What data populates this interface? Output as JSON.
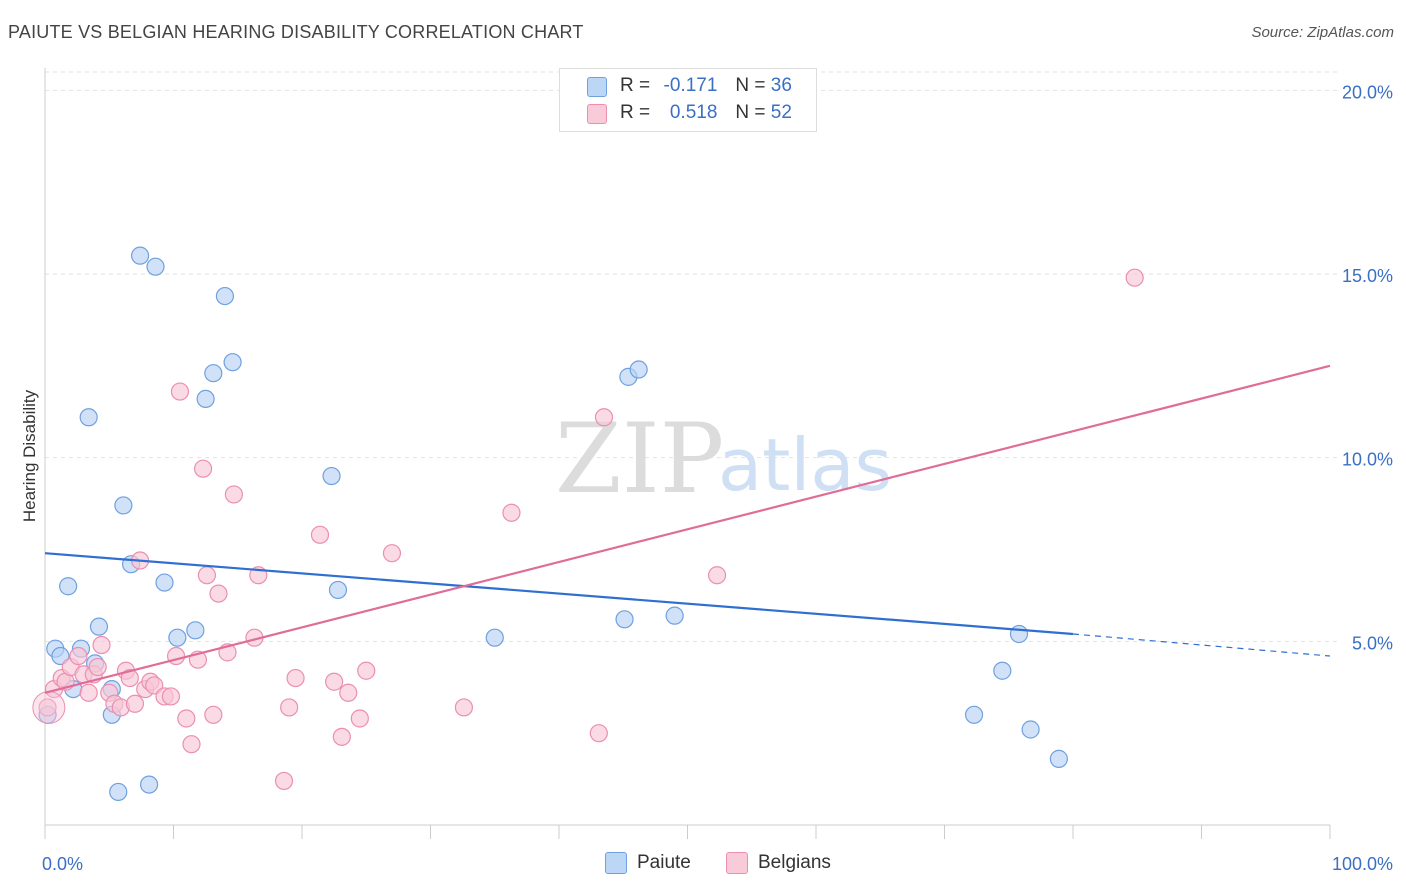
{
  "header": {
    "title": "PAIUTE VS BELGIAN HEARING DISABILITY CORRELATION CHART",
    "source": "Source: ZipAtlas.com"
  },
  "watermark": {
    "zip": "ZIP",
    "atlas": "atlas"
  },
  "legend_stats": [
    {
      "r_label": "R =",
      "r_value": "-0.171",
      "n_label": "N =",
      "n_value": "36",
      "color": "#a8c8f0"
    },
    {
      "r_label": "R =",
      "r_value": "0.518",
      "n_label": "N =",
      "n_value": "52",
      "color": "#f6b8cc"
    }
  ],
  "chart_data": {
    "type": "scatter",
    "title": "PAIUTE VS BELGIAN HEARING DISABILITY CORRELATION CHART",
    "xlabel": "",
    "ylabel": "Hearing Disability",
    "xlim": [
      0,
      100
    ],
    "ylim": [
      0,
      20.5
    ],
    "x_tick_labels": [
      "0.0%",
      "100.0%"
    ],
    "y_ticks": [
      5,
      10,
      15,
      20
    ],
    "y_tick_labels": [
      "5.0%",
      "10.0%",
      "15.0%",
      "20.0%"
    ],
    "grid": true,
    "legend_position": "bottom",
    "series": [
      {
        "name": "Paiute",
        "color": "#6fa0e0",
        "fill": "#b9d3f4",
        "trend": {
          "x": [
            0,
            80
          ],
          "y": [
            7.4,
            5.2
          ],
          "dashed_to": [
            100,
            4.6
          ],
          "color": "#2f6fd0"
        },
        "points": [
          [
            0.2,
            3.0
          ],
          [
            0.8,
            4.8
          ],
          [
            1.2,
            4.6
          ],
          [
            1.8,
            6.5
          ],
          [
            2.2,
            3.7
          ],
          [
            2.8,
            4.8
          ],
          [
            3.4,
            11.1
          ],
          [
            3.9,
            4.4
          ],
          [
            4.2,
            5.4
          ],
          [
            5.2,
            3.7
          ],
          [
            5.2,
            3.0
          ],
          [
            5.7,
            0.9
          ],
          [
            6.1,
            8.7
          ],
          [
            6.7,
            7.1
          ],
          [
            7.4,
            15.5
          ],
          [
            8.1,
            1.1
          ],
          [
            8.6,
            15.2
          ],
          [
            9.3,
            6.6
          ],
          [
            10.3,
            5.1
          ],
          [
            11.7,
            5.3
          ],
          [
            12.5,
            11.6
          ],
          [
            13.1,
            12.3
          ],
          [
            14.0,
            14.4
          ],
          [
            14.6,
            12.6
          ],
          [
            22.3,
            9.5
          ],
          [
            22.8,
            6.4
          ],
          [
            35.0,
            5.1
          ],
          [
            45.1,
            5.6
          ],
          [
            45.4,
            12.2
          ],
          [
            46.2,
            12.4
          ],
          [
            49.0,
            5.7
          ],
          [
            72.3,
            3.0
          ],
          [
            74.5,
            4.2
          ],
          [
            75.8,
            5.2
          ],
          [
            76.7,
            2.6
          ],
          [
            78.9,
            1.8
          ]
        ]
      },
      {
        "name": "Belgians",
        "color": "#eb8fb0",
        "fill": "#f8c6d6",
        "trend": {
          "x": [
            0,
            100
          ],
          "y": [
            3.6,
            12.5
          ],
          "color": "#e06c98"
        },
        "points": [
          [
            0.2,
            3.2
          ],
          [
            0.7,
            3.7
          ],
          [
            1.3,
            4.0
          ],
          [
            1.6,
            3.9
          ],
          [
            2.0,
            4.3
          ],
          [
            2.6,
            4.6
          ],
          [
            3.0,
            4.1
          ],
          [
            3.4,
            3.6
          ],
          [
            3.8,
            4.1
          ],
          [
            4.1,
            4.3
          ],
          [
            4.4,
            4.9
          ],
          [
            5.0,
            3.6
          ],
          [
            5.4,
            3.3
          ],
          [
            5.9,
            3.2
          ],
          [
            6.3,
            4.2
          ],
          [
            6.6,
            4.0
          ],
          [
            7.0,
            3.3
          ],
          [
            7.4,
            7.2
          ],
          [
            7.8,
            3.7
          ],
          [
            8.2,
            3.9
          ],
          [
            8.5,
            3.8
          ],
          [
            9.3,
            3.5
          ],
          [
            9.8,
            3.5
          ],
          [
            10.2,
            4.6
          ],
          [
            10.5,
            11.8
          ],
          [
            11.0,
            2.9
          ],
          [
            11.4,
            2.2
          ],
          [
            11.9,
            4.5
          ],
          [
            12.3,
            9.7
          ],
          [
            12.6,
            6.8
          ],
          [
            13.1,
            3.0
          ],
          [
            13.5,
            6.3
          ],
          [
            14.2,
            4.7
          ],
          [
            14.7,
            9.0
          ],
          [
            16.3,
            5.1
          ],
          [
            16.6,
            6.8
          ],
          [
            18.6,
            1.2
          ],
          [
            19.0,
            3.2
          ],
          [
            19.5,
            4.0
          ],
          [
            21.4,
            7.9
          ],
          [
            22.5,
            3.9
          ],
          [
            23.1,
            2.4
          ],
          [
            23.6,
            3.6
          ],
          [
            24.5,
            2.9
          ],
          [
            25.0,
            4.2
          ],
          [
            27.0,
            7.4
          ],
          [
            32.6,
            3.2
          ],
          [
            36.3,
            8.5
          ],
          [
            43.1,
            2.5
          ],
          [
            43.5,
            11.1
          ],
          [
            52.3,
            6.8
          ],
          [
            84.8,
            14.9
          ]
        ]
      }
    ]
  }
}
